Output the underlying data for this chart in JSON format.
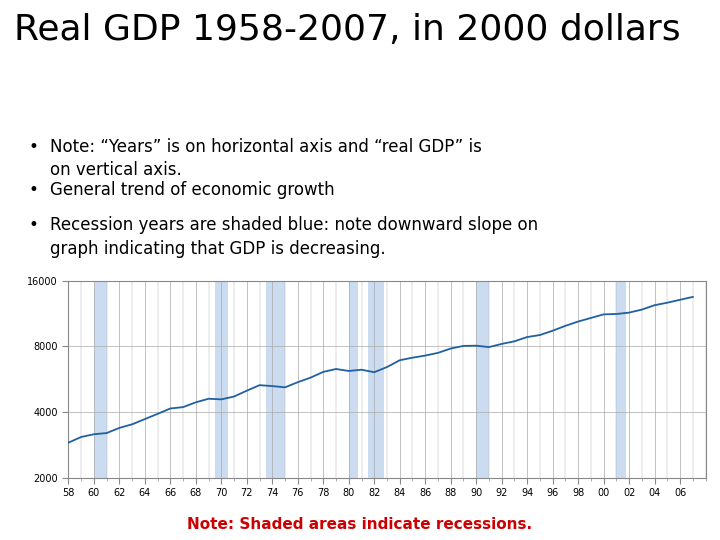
{
  "title": "Real GDP 1958-2007, in 2000 dollars",
  "bullets": [
    "Note: “Years” is on horizontal axis and “real GDP” is on vertical axis.",
    "General trend of economic growth",
    "Recession years are shaded blue: note downward slope on graph indicating that GDP is decreasing."
  ],
  "note": "Note: Shaded areas indicate recessions.",
  "note_color": "#cc0000",
  "background_color": "#ffffff",
  "line_color": "#2060a0",
  "recession_color": "#b0c8e8",
  "recession_alpha": 0.65,
  "recession_bands": [
    [
      1960,
      1961
    ],
    [
      1969.5,
      1970.5
    ],
    [
      1973.5,
      1975
    ],
    [
      1980,
      1980.75
    ],
    [
      1981.5,
      1982.75
    ],
    [
      1990,
      1991
    ],
    [
      2001,
      2001.75
    ]
  ],
  "years": [
    1958,
    1959,
    1960,
    1961,
    1962,
    1963,
    1964,
    1965,
    1966,
    1967,
    1968,
    1969,
    1970,
    1971,
    1972,
    1973,
    1974,
    1975,
    1976,
    1977,
    1978,
    1979,
    1980,
    1981,
    1982,
    1983,
    1984,
    1985,
    1986,
    1987,
    1988,
    1989,
    1990,
    1991,
    1992,
    1993,
    1994,
    1995,
    1996,
    1997,
    1998,
    1999,
    2000,
    2001,
    2002,
    2003,
    2004,
    2005,
    2006,
    2007
  ],
  "gdp": [
    2900,
    3080,
    3170,
    3210,
    3390,
    3520,
    3720,
    3930,
    4160,
    4220,
    4440,
    4610,
    4580,
    4720,
    5020,
    5320,
    5270,
    5200,
    5490,
    5760,
    6120,
    6310,
    6180,
    6260,
    6100,
    6440,
    6920,
    7110,
    7270,
    7480,
    7830,
    8050,
    8070,
    7950,
    8220,
    8450,
    8840,
    9030,
    9450,
    9950,
    10410,
    10810,
    11230,
    11270,
    11440,
    11810,
    12370,
    12700,
    13100,
    13500
  ],
  "ytick_values": [
    2000,
    4000,
    8000,
    16000
  ],
  "ytick_labels": [
    "2000",
    "4000",
    "8000",
    "16000"
  ],
  "xtick_years": [
    1958,
    1960,
    1962,
    1964,
    1966,
    1968,
    1970,
    1972,
    1974,
    1976,
    1978,
    1980,
    1982,
    1984,
    1986,
    1988,
    1990,
    1992,
    1994,
    1996,
    1998,
    2000,
    2002,
    2004,
    2006
  ],
  "xtick_labels": [
    "58",
    "60",
    "62",
    "64",
    "66",
    "68",
    "70",
    "72",
    "74",
    "76",
    "78",
    "80",
    "82",
    "84",
    "86",
    "88",
    "90",
    "92",
    "94",
    "96",
    "98",
    "00",
    "02",
    "04",
    "06"
  ],
  "xlim": [
    1958,
    2008
  ],
  "ylim_log": [
    2000,
    16000
  ],
  "grid_color": "#aaaaaa",
  "axes_color": "#888888",
  "title_fontsize": 26,
  "bullet_fontsize": 12,
  "note_fontsize": 11,
  "tick_fontsize": 7
}
